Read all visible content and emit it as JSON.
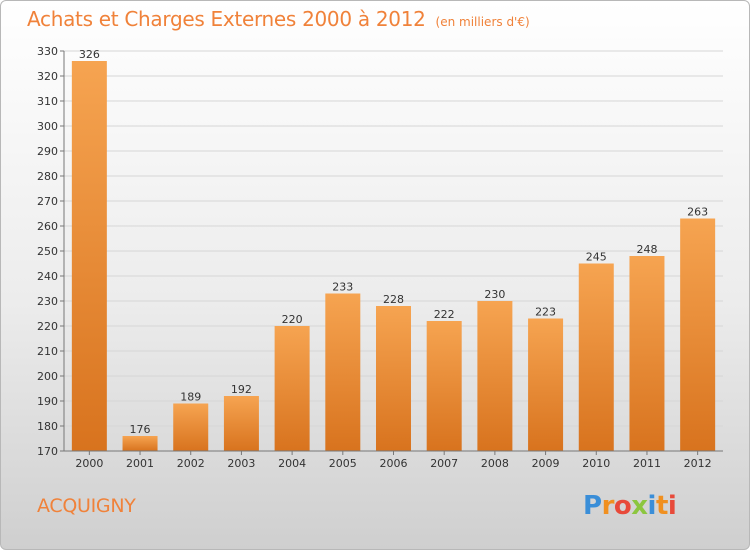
{
  "header": {
    "title": "Achats et Charges Externes 2000 à 2012",
    "subtitle": "(en milliers d'€)"
  },
  "footer": {
    "commune": "ACQUIGNY",
    "logo_letters": [
      "P",
      "r",
      "o",
      "x",
      "i",
      "t",
      "i"
    ],
    "logo_colors": [
      "#3a8ed8",
      "#f09020",
      "#e84a3a",
      "#8cc63f",
      "#3a8ed8",
      "#f09020",
      "#e84a3a"
    ]
  },
  "colors": {
    "accent": "#f0823a",
    "bar_light": "#f6a451",
    "bar_dark": "#d8731e"
  },
  "chart_data": {
    "type": "bar",
    "categories": [
      "2000",
      "2001",
      "2002",
      "2003",
      "2004",
      "2005",
      "2006",
      "2007",
      "2008",
      "2009",
      "2010",
      "2011",
      "2012"
    ],
    "values": [
      326,
      176,
      189,
      192,
      220,
      233,
      228,
      222,
      230,
      223,
      245,
      248,
      263
    ],
    "ylim": [
      170,
      330
    ],
    "yticks": [
      170,
      180,
      190,
      200,
      210,
      220,
      230,
      240,
      250,
      260,
      270,
      280,
      290,
      300,
      310,
      320,
      330
    ],
    "grid": true,
    "data_labels": true
  }
}
